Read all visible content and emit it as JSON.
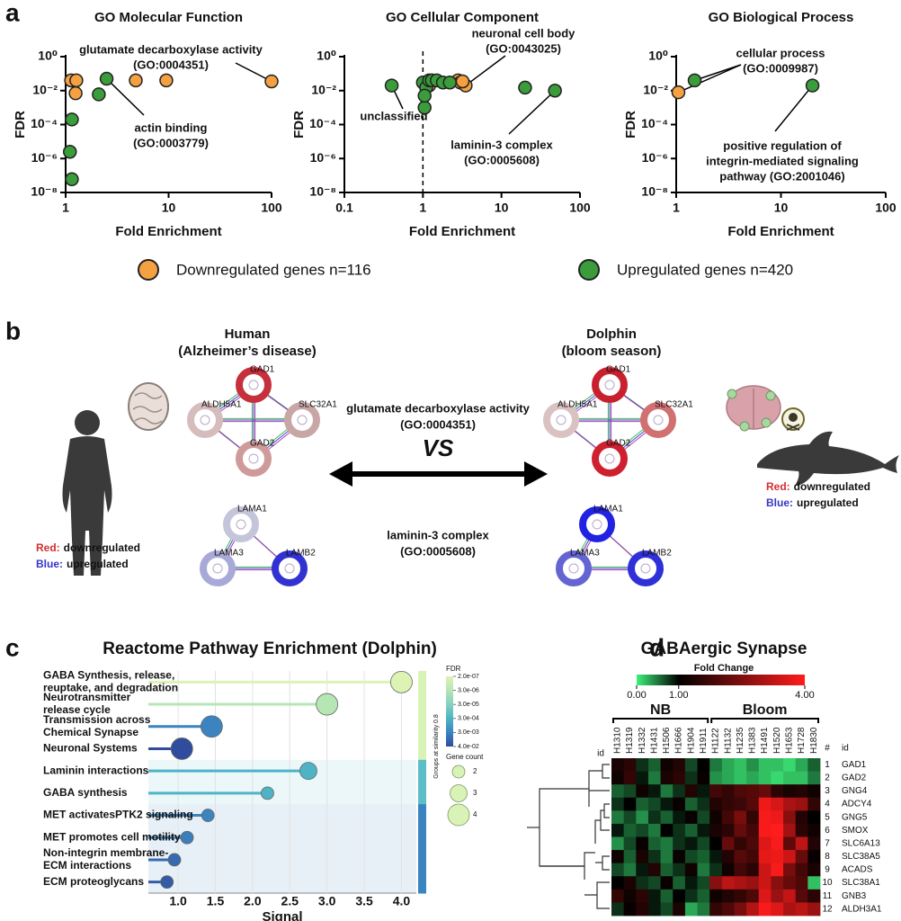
{
  "panel_labels": [
    "a",
    "b",
    "c",
    "d"
  ],
  "chart_data": [
    {
      "type": "scatter",
      "title": "GO Molecular Function",
      "x_label": "Fold Enrichment",
      "y_label": "FDR",
      "log_x": true,
      "log_y": true,
      "xlim": [
        1,
        100
      ],
      "xticks": [
        1,
        10,
        100
      ],
      "ylim": [
        1e-08,
        1
      ],
      "yticks": [
        {
          "value": 1e-08,
          "label": "10⁻⁸"
        },
        {
          "value": 1e-06,
          "label": "10⁻⁶"
        },
        {
          "value": 0.0001,
          "label": "10⁻⁴"
        },
        {
          "value": 0.01,
          "label": "10⁻²"
        },
        {
          "value": 1,
          "label": "10⁰"
        }
      ],
      "series": [
        {
          "name": "Downregulated genes n=116",
          "color": "#f5a142",
          "x": [
            1.13,
            1.27,
            1.25,
            4.8,
            9.5,
            100
          ],
          "values": [
            0.04,
            0.04,
            0.007,
            0.04,
            0.04,
            0.035
          ]
        },
        {
          "name": "Upregulated genes n=420",
          "color": "#3a9c3a",
          "x": [
            2.1,
            2.5,
            1.15,
            1.1,
            1.15
          ],
          "values": [
            0.006,
            0.05,
            0.0002,
            2.5e-06,
            6e-08
          ]
        }
      ],
      "annotations": [
        {
          "lines": [
            "glutamate decarboxylase activity",
            "(GO:0004351)"
          ]
        },
        {
          "lines": [
            "actin binding",
            "(GO:0003779)"
          ]
        }
      ]
    },
    {
      "type": "scatter",
      "title": "GO Cellular Component",
      "x_label": "Fold Enrichment",
      "y_label": "FDR",
      "log_x": true,
      "log_y": true,
      "xlim": [
        0.1,
        100
      ],
      "xticks": [
        0.1,
        1,
        10,
        100
      ],
      "ylim": [
        1e-08,
        1
      ],
      "yticks": [
        {
          "value": 1e-08,
          "label": "10⁻⁸"
        },
        {
          "value": 1e-06,
          "label": "10⁻⁶"
        },
        {
          "value": 0.0001,
          "label": "10⁻⁴"
        },
        {
          "value": 0.01,
          "label": "10⁻²"
        },
        {
          "value": 1,
          "label": "10⁰"
        }
      ],
      "reference_x": 1,
      "series": [
        {
          "color": "#f5a142",
          "x": [
            1.2,
            2.8,
            3.0,
            3.5,
            3.2
          ],
          "values": [
            0.02,
            0.04,
            0.03,
            0.02,
            0.035
          ]
        },
        {
          "color": "#3a9c3a",
          "x": [
            0.4,
            1.0,
            1.05,
            1.1,
            1.2,
            1.3,
            1.5,
            1.8,
            2.2,
            1.05,
            20,
            48
          ],
          "values": [
            0.02,
            0.03,
            0.001,
            0.015,
            0.04,
            0.04,
            0.04,
            0.03,
            0.03,
            0.005,
            0.015,
            0.01
          ]
        }
      ],
      "annotations": [
        {
          "lines": [
            "neuronal cell body",
            "(GO:0043025)"
          ]
        },
        {
          "lines": [
            "unclassified"
          ]
        },
        {
          "lines": [
            "laminin-3 complex",
            "(GO:0005608)"
          ]
        }
      ]
    },
    {
      "type": "scatter",
      "title": "GO Biological Process",
      "x_label": "Fold Enrichment",
      "y_label": "FDR",
      "log_x": true,
      "log_y": true,
      "xlim": [
        1,
        100
      ],
      "xticks": [
        1,
        10,
        100
      ],
      "ylim": [
        1e-08,
        1
      ],
      "yticks": [
        {
          "value": 1e-08,
          "label": "10⁻⁸"
        },
        {
          "value": 1e-06,
          "label": "10⁻⁶"
        },
        {
          "value": 0.0001,
          "label": "10⁻⁴"
        },
        {
          "value": 0.01,
          "label": "10⁻²"
        },
        {
          "value": 1,
          "label": "10⁰"
        }
      ],
      "series": [
        {
          "color": "#f5a142",
          "x": [
            1.05
          ],
          "values": [
            0.008
          ]
        },
        {
          "color": "#3a9c3a",
          "x": [
            1.5,
            20
          ],
          "values": [
            0.04,
            0.02
          ]
        }
      ],
      "annotations": [
        {
          "lines": [
            "cellular process",
            "(GO:0009987)"
          ]
        },
        {
          "lines": [
            "positive regulation of",
            "integrin-mediated signaling",
            "pathway (GO:2001046)"
          ]
        }
      ]
    },
    {
      "type": "lollipop",
      "title": "Reactome Pathway Enrichment (Dolphin)",
      "x_label": "Signal",
      "xlim": [
        0.6,
        4.2
      ],
      "xticks": [
        {
          "value": 1,
          "label": "1.0"
        },
        {
          "value": 1.5,
          "label": "1.5"
        },
        {
          "value": 2,
          "label": "2.0"
        },
        {
          "value": 2.5,
          "label": "2.5"
        },
        {
          "value": 3,
          "label": "3.0"
        },
        {
          "value": 3.5,
          "label": "3.5"
        },
        {
          "value": 4,
          "label": "4.0"
        }
      ],
      "categories": [
        [
          "GABA Synthesis, release,",
          "reuptake, and degradation"
        ],
        [
          "Neurotransmitter",
          "release cycle"
        ],
        [
          "Transmission across",
          "Chemical Synapse"
        ],
        [
          "Neuronal Systems"
        ],
        [
          "Laminin interactions"
        ],
        [
          "GABA synthesis"
        ],
        [
          "MET activatesPTK2 signaling"
        ],
        [
          "MET promotes cell motility"
        ],
        [
          "Non-integrin membrane-",
          "ECM interactions"
        ],
        [
          "ECM proteoglycans"
        ]
      ],
      "values": [
        4.0,
        3.0,
        1.45,
        1.05,
        2.75,
        2.2,
        1.4,
        1.12,
        0.95,
        0.85
      ],
      "gene_count": [
        4,
        4,
        4,
        4,
        3,
        2,
        2,
        2,
        2,
        2
      ],
      "fdr": [
        2e-07,
        3e-06,
        0.003,
        0.04,
        0.0003,
        0.0003,
        0.003,
        0.004,
        0.01,
        0.02
      ],
      "color_legend": {
        "title": "FDR",
        "ticks": [
          {
            "value": 2e-07,
            "label": "2.0e-07"
          },
          {
            "value": 3e-06,
            "label": "3.0e-06"
          },
          {
            "value": 3e-05,
            "label": "3.0e-05"
          },
          {
            "value": 0.0003,
            "label": "3.0e-04"
          },
          {
            "value": 0.003,
            "label": "3.0e-03"
          },
          {
            "value": 0.04,
            "label": "4.0e-02"
          }
        ],
        "colors": [
          "#dcf3b4",
          "#b6e6b4",
          "#86d0c0",
          "#4fb3c6",
          "#3c84bf",
          "#2f4d9c"
        ]
      },
      "size_legend": {
        "title": "Gene count",
        "values": [
          2,
          3,
          4
        ]
      },
      "group_title": "Groups at similarity 0.8",
      "group_colors": [
        "#d9f3b6",
        "#d9f3b6",
        "#d9f3b6",
        "#d9f3b6",
        "#5cbfc8",
        "#5cbfc8",
        "#3a84bf",
        "#3a84bf",
        "#3a84bf",
        "#3a84bf"
      ]
    },
    {
      "type": "heatmap",
      "title": "GABAergic Synapse",
      "color_title": "Fold Change",
      "color_ticks": [
        {
          "value": 0,
          "label": "0.00"
        },
        {
          "value": 1,
          "label": "1.00"
        },
        {
          "value": 4,
          "label": "4.00"
        }
      ],
      "colors": [
        "#3ef07a",
        "#000000",
        "#ff1c1c"
      ],
      "column_groups": [
        {
          "name": "NB",
          "columns": [
            "H1310",
            "H1319",
            "H1332",
            "H1431",
            "H1506",
            "H1666",
            "H1904",
            "H1911"
          ]
        },
        {
          "name": "Bloom",
          "columns": [
            "H1122",
            "H1132",
            "H1235",
            "H1383",
            "H1491",
            "H1520",
            "H1653",
            "H1728",
            "H1830"
          ]
        }
      ],
      "column_id_label": "id",
      "number_header": "#",
      "row_id_label": "id",
      "row_numbers": [
        1,
        2,
        3,
        4,
        5,
        6,
        7,
        8,
        9,
        10,
        11,
        12
      ],
      "rows": [
        "GAD1",
        "GAD2",
        "GNG4",
        "ADCY4",
        "GNG5",
        "SMOX",
        "SLC6A13",
        "SLC38A5",
        "ACADS",
        "SLC38A1",
        "GNB3",
        "ALDH3A1"
      ],
      "values": [
        [
          1.3,
          1.5,
          0.8,
          0.6,
          1.2,
          1.4,
          0.7,
          1.0,
          0.5,
          0.3,
          0.2,
          0.4,
          0.2,
          0.2,
          0.1,
          0.3,
          0.6
        ],
        [
          1.2,
          1.6,
          0.9,
          0.5,
          1.3,
          1.5,
          0.8,
          1.1,
          0.4,
          0.3,
          0.2,
          0.3,
          0.2,
          0.1,
          0.2,
          0.2,
          0.5
        ],
        [
          0.6,
          0.7,
          1.2,
          0.9,
          0.5,
          0.8,
          1.4,
          0.9,
          1.8,
          1.6,
          1.9,
          2.0,
          2.2,
          1.5,
          1.3,
          1.4,
          1.2
        ],
        [
          0.8,
          1.0,
          0.6,
          0.7,
          0.9,
          1.1,
          0.6,
          0.8,
          1.4,
          1.6,
          1.7,
          2.0,
          3.8,
          3.5,
          3.0,
          2.8,
          1.6
        ],
        [
          0.5,
          0.7,
          0.4,
          0.8,
          0.6,
          0.9,
          1.1,
          0.7,
          1.2,
          1.8,
          2.4,
          1.6,
          3.9,
          3.8,
          2.6,
          1.4,
          1.0
        ],
        [
          0.9,
          0.6,
          0.7,
          0.5,
          1.0,
          0.8,
          0.6,
          0.9,
          1.3,
          1.5,
          2.2,
          1.8,
          3.9,
          4.0,
          2.9,
          1.5,
          1.2
        ],
        [
          0.4,
          0.7,
          1.1,
          0.6,
          0.5,
          0.8,
          0.9,
          0.7,
          1.0,
          2.2,
          1.6,
          1.9,
          3.6,
          3.9,
          2.1,
          3.2,
          1.4
        ],
        [
          1.2,
          0.6,
          1.3,
          0.8,
          0.5,
          1.1,
          0.7,
          0.6,
          0.9,
          1.4,
          2.0,
          1.8,
          3.7,
          3.8,
          3.4,
          2.2,
          1.1
        ],
        [
          0.7,
          0.5,
          0.9,
          1.4,
          0.6,
          0.8,
          1.2,
          0.5,
          0.8,
          1.2,
          1.8,
          1.5,
          3.4,
          3.9,
          2.4,
          1.8,
          1.3
        ],
        [
          1.0,
          1.3,
          0.8,
          0.7,
          1.1,
          0.6,
          0.9,
          0.7,
          2.6,
          3.2,
          3.0,
          2.8,
          3.4,
          2.6,
          2.2,
          1.9,
          0.2
        ],
        [
          1.6,
          1.2,
          1.5,
          0.9,
          0.6,
          1.0,
          0.8,
          0.6,
          1.2,
          1.4,
          1.6,
          1.9,
          3.6,
          2.8,
          3.3,
          2.0,
          1.5
        ],
        [
          0.8,
          1.1,
          1.4,
          0.9,
          0.7,
          1.3,
          0.3,
          0.5,
          1.6,
          1.9,
          2.4,
          3.1,
          3.9,
          3.6,
          3.0,
          3.2,
          2.8
        ]
      ]
    }
  ],
  "diagram": {
    "sides": [
      {
        "title": "Human",
        "subtitle": "(Alzheimer’s disease)",
        "legend": [
          {
            "key": "Red:",
            "text": "downregulated",
            "color": "#d32f2f"
          },
          {
            "key": "Blue:",
            "text": "upregulated",
            "color": "#3535c8"
          }
        ],
        "networks": [
          [
            {
              "label": "GAD1",
              "color": "#c62f3c"
            },
            {
              "label": "ALDH5A1",
              "color": "#d6bcbc"
            },
            {
              "label": "SLC32A1",
              "color": "#c9a6a6"
            },
            {
              "label": "GAD2",
              "color": "#cf9a9a"
            }
          ],
          [
            {
              "label": "LAMA1",
              "color": "#c4c4da"
            },
            {
              "label": "LAMA3",
              "color": "#a9a9d8"
            },
            {
              "label": "LAMB2",
              "color": "#3232d2"
            }
          ]
        ]
      },
      {
        "title": "Dolphin",
        "subtitle": "(bloom season)",
        "legend": [
          {
            "key": "Red:",
            "text": "downregulated",
            "color": "#d32f2f"
          },
          {
            "key": "Blue:",
            "text": "upregulated",
            "color": "#3535c8"
          }
        ],
        "networks": [
          [
            {
              "label": "GAD1",
              "color": "#c8202e"
            },
            {
              "label": "ALDH5A1",
              "color": "#dbc2c2"
            },
            {
              "label": "SLC32A1",
              "color": "#d07070"
            },
            {
              "label": "GAD2",
              "color": "#cf2030"
            }
          ],
          [
            {
              "label": "LAMA1",
              "color": "#2222e2"
            },
            {
              "label": "LAMA3",
              "color": "#6464d2"
            },
            {
              "label": "LAMB2",
              "color": "#3030d8"
            }
          ]
        ]
      }
    ],
    "vs": "VS",
    "terms": [
      [
        "glutamate decarboxylase activity",
        "(GO:0004351)"
      ],
      [
        "laminin-3 complex",
        "(GO:0005608)"
      ]
    ]
  }
}
